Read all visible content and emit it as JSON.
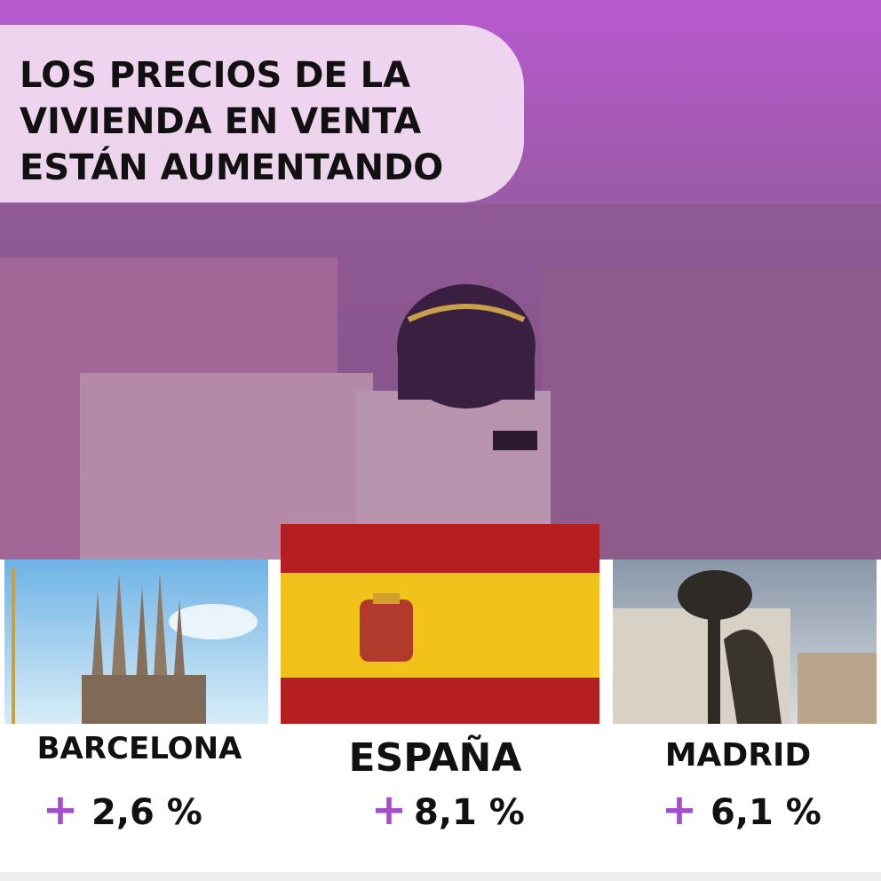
{
  "header": {
    "title_lines": [
      "LOS PRECIOS DE LA",
      "VIVIENDA EN VENTA",
      "ESTÁN AUMENTANDO"
    ]
  },
  "panels": [
    {
      "name": "BARCELONA",
      "sign": "+",
      "change": "2,6 %"
    },
    {
      "name": "ESPAÑA",
      "sign": "+",
      "change": "8,1 %"
    },
    {
      "name": "MADRID",
      "sign": "+",
      "change": "6,1 %"
    }
  ]
}
